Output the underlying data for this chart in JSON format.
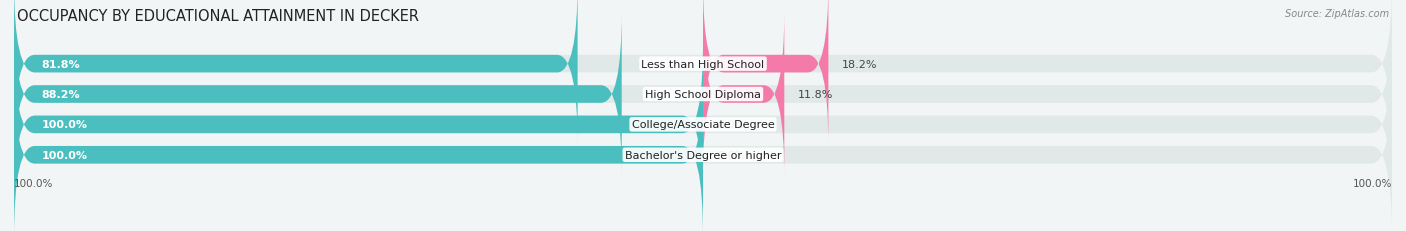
{
  "title": "OCCUPANCY BY EDUCATIONAL ATTAINMENT IN DECKER",
  "source": "Source: ZipAtlas.com",
  "categories": [
    "Less than High School",
    "High School Diploma",
    "College/Associate Degree",
    "Bachelor's Degree or higher"
  ],
  "owner_pct": [
    81.8,
    88.2,
    100.0,
    100.0
  ],
  "renter_pct": [
    18.2,
    11.8,
    0.0,
    0.0
  ],
  "owner_color": "#4bbfbf",
  "renter_color": "#f47aaa",
  "bg_color": "#f2f5f5",
  "bar_bg_color": "#e0e8e8",
  "title_fontsize": 10.5,
  "label_fontsize": 8,
  "value_fontsize": 8,
  "legend_fontsize": 8.5,
  "axis_label_fontsize": 7.5,
  "left_axis_label": "100.0%",
  "right_axis_label": "100.0%"
}
